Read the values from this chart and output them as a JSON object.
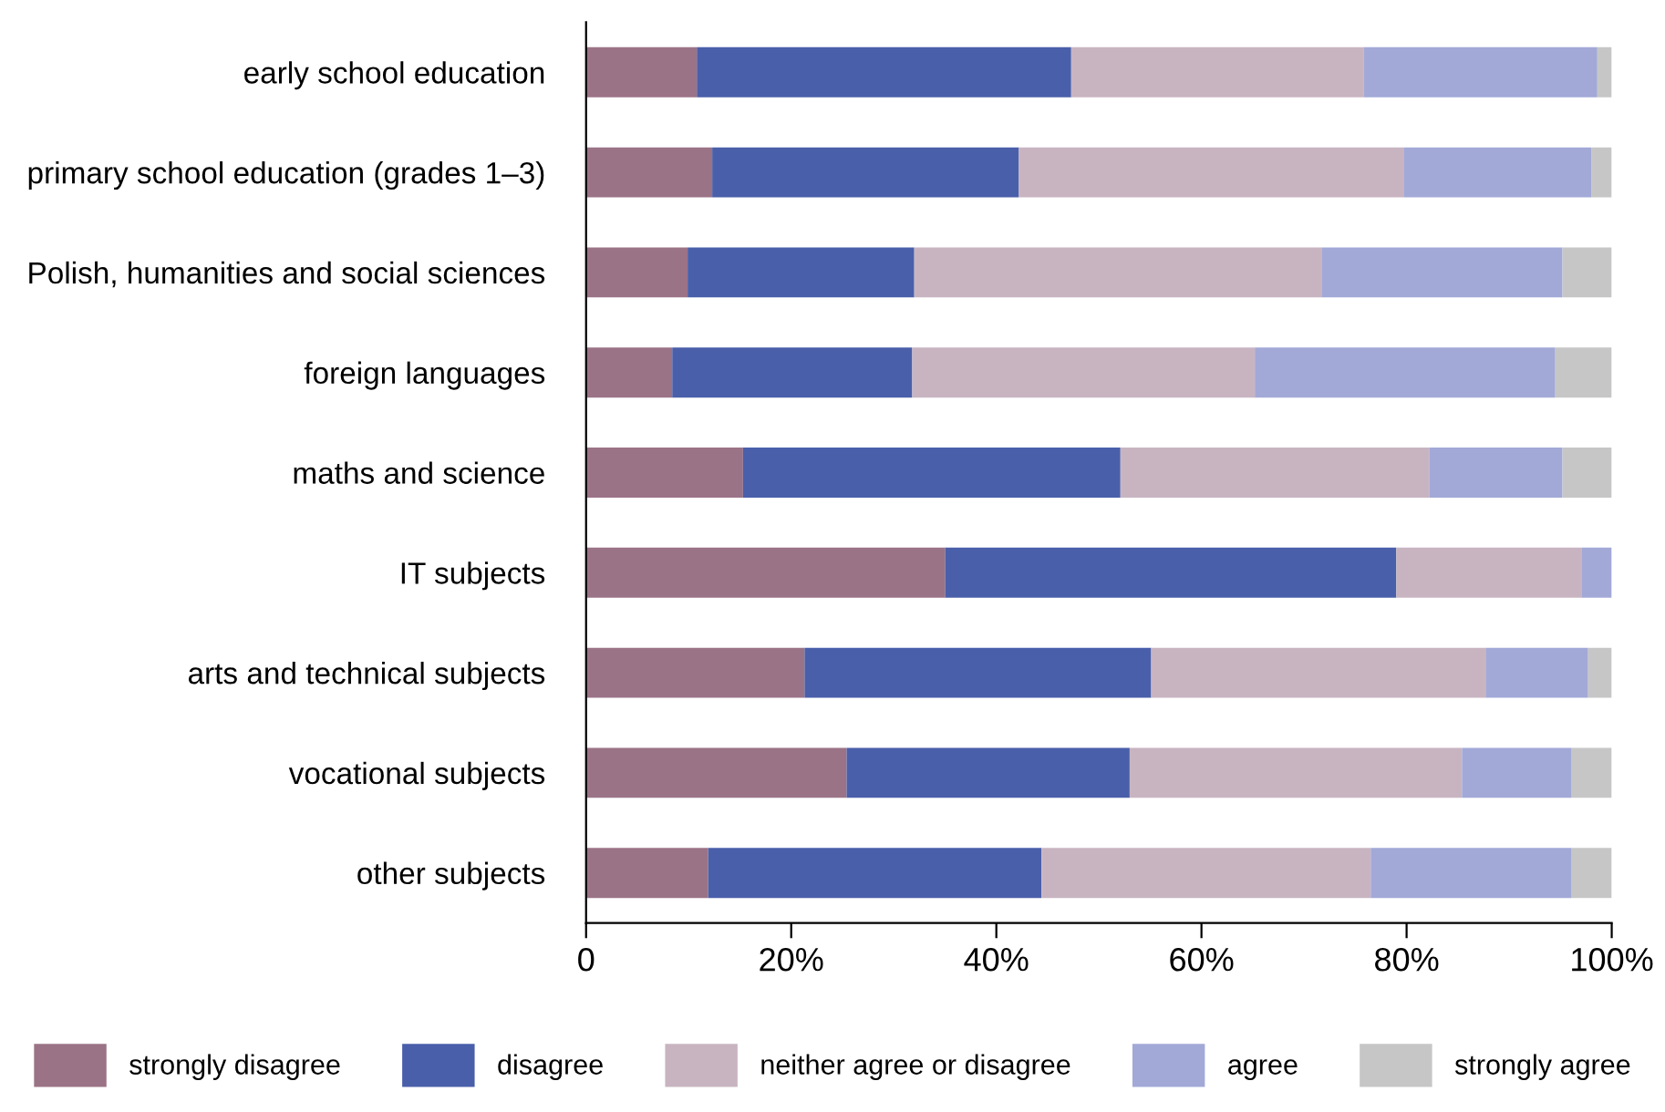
{
  "chart_data": {
    "type": "bar",
    "orientation": "horizontal",
    "stacked": true,
    "categories": [
      "early school education",
      "primary school education (grades 1–3)",
      "Polish, humanities and social sciences",
      "foreign languages",
      "maths and science",
      "IT subjects",
      "arts and technical subjects",
      "vocational subjects",
      "other subjects"
    ],
    "series": [
      {
        "name": "strongly disagree",
        "color": "#9b7386",
        "values": [
          10.8,
          12.3,
          9.9,
          8.4,
          15.3,
          35.0,
          21.3,
          25.4,
          11.9
        ]
      },
      {
        "name": "disagree",
        "color": "#4a5faa",
        "values": [
          36.5,
          29.9,
          22.1,
          23.4,
          36.8,
          44.0,
          33.8,
          27.6,
          32.5
        ]
      },
      {
        "name": "neither agree or disagree",
        "color": "#c8b4c1",
        "values": [
          28.5,
          37.5,
          39.7,
          33.4,
          30.1,
          18.1,
          32.6,
          32.4,
          32.1
        ]
      },
      {
        "name": "agree",
        "color": "#a2a9d7",
        "values": [
          22.8,
          18.3,
          23.5,
          29.3,
          13.0,
          2.9,
          10.0,
          10.7,
          19.6
        ]
      },
      {
        "name": "strongly agree",
        "color": "#c6c6c6",
        "values": [
          1.4,
          2.0,
          4.8,
          5.5,
          4.8,
          0,
          2.3,
          3.9,
          3.9
        ]
      }
    ],
    "xlim": [
      0,
      100
    ],
    "xticks": [
      0,
      {
        "value": 20,
        "label": "20%"
      },
      {
        "value": 40,
        "label": "40%"
      },
      {
        "value": 60,
        "label": "60%"
      },
      {
        "value": 80,
        "label": "80%"
      },
      {
        "value": 100,
        "label": "100%"
      }
    ],
    "grid": false,
    "legend": "bottom"
  }
}
